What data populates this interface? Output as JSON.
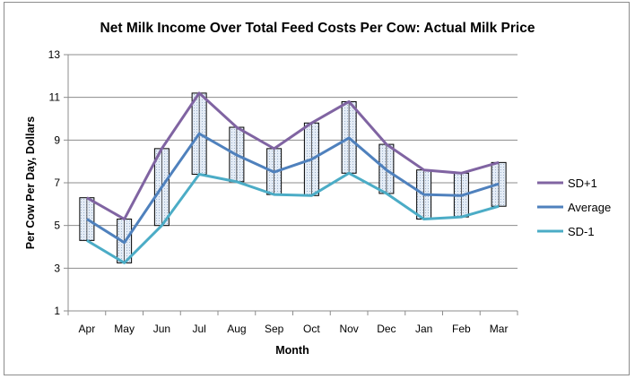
{
  "chart_data": {
    "type": "line",
    "title": "Net Milk Income Over Total Feed Costs Per Cow: Actual Milk Price",
    "xlabel": "Month",
    "ylabel": "Per Cow Per Day, Dollars",
    "ylim": [
      1,
      13
    ],
    "yticks": [
      1,
      3,
      5,
      7,
      9,
      11,
      13
    ],
    "grid": true,
    "legend_position": "right",
    "categories": [
      "Apr",
      "May",
      "Jun",
      "Jul",
      "Aug",
      "Sep",
      "Oct",
      "Nov",
      "Dec",
      "Jan",
      "Feb",
      "Mar"
    ],
    "series": [
      {
        "name": "SD+1",
        "color": "#8064a2",
        "values": [
          6.3,
          5.3,
          8.6,
          11.2,
          9.6,
          8.6,
          9.8,
          10.8,
          8.8,
          7.6,
          7.45,
          7.95
        ]
      },
      {
        "name": "Average",
        "color": "#4f81bd",
        "values": [
          5.3,
          4.2,
          6.8,
          9.3,
          8.3,
          7.5,
          8.1,
          9.1,
          7.6,
          6.45,
          6.4,
          6.95
        ]
      },
      {
        "name": "SD-1",
        "color": "#4bacc6",
        "values": [
          4.3,
          3.25,
          5.0,
          7.4,
          7.05,
          6.45,
          6.4,
          7.45,
          6.5,
          5.3,
          5.4,
          5.9
        ]
      }
    ]
  }
}
